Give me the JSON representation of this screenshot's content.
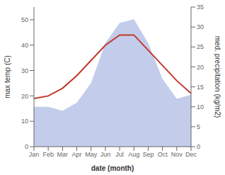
{
  "chart_data": {
    "type": "line",
    "categories": [
      "Jan",
      "Feb",
      "Mar",
      "Apr",
      "May",
      "Jun",
      "Jul",
      "Aug",
      "Sep",
      "Oct",
      "Nov",
      "Dec"
    ],
    "series": [
      {
        "type": "area",
        "axis": "y2",
        "color": "#b8c4e8",
        "values": [
          10,
          10,
          9,
          11,
          16,
          26,
          31,
          32,
          26,
          17,
          12,
          13
        ]
      },
      {
        "type": "line",
        "color": "#c0392b",
        "values": [
          19,
          20,
          23,
          28,
          34,
          40,
          44,
          44,
          38,
          32,
          26,
          21
        ]
      }
    ],
    "xlabel": "date (month)",
    "ylabel": "max temp (C)",
    "y2label": "med. precipitation (kg/m2)",
    "ylim": [
      0,
      55
    ],
    "yticks": [
      0,
      10,
      20,
      30,
      40,
      50
    ],
    "y2lim": [
      0,
      35
    ],
    "y2ticks": [
      0,
      5,
      10,
      15,
      20,
      25,
      30,
      35
    ],
    "grid": false
  }
}
